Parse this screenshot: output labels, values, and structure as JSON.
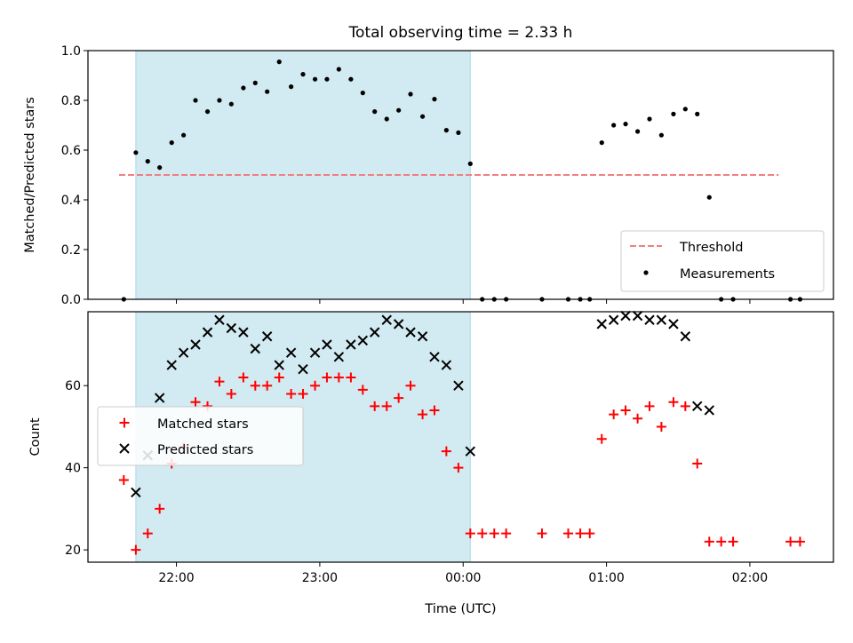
{
  "chart_data": [
    {
      "type": "scatter",
      "title": "Total observing time = 2.33 h",
      "xlabel": "",
      "ylabel": "Matched/Predicted stars",
      "ylim": [
        0,
        1.0
      ],
      "yticks": [
        0.0,
        0.2,
        0.4,
        0.6,
        0.8,
        1.0
      ],
      "ytick_labels": [
        "0.0",
        "0.2",
        "0.4",
        "0.6",
        "0.8",
        "1.0"
      ],
      "shaded_region": {
        "x_start": 21.717,
        "x_end": 24.05,
        "color": "#add8e6"
      },
      "threshold": {
        "name": "Threshold",
        "value": 0.5,
        "x_start": 21.6,
        "x_end": 26.2,
        "color": "#f08080",
        "style": "dashed"
      },
      "legend": {
        "placement": "lower right",
        "entries": [
          "Threshold",
          "Measurements"
        ]
      },
      "series": [
        {
          "name": "Measurements",
          "marker": "dot",
          "color": "#000000",
          "points": [
            [
              21.633,
              0.0
            ],
            [
              21.717,
              0.59
            ],
            [
              21.8,
              0.555
            ],
            [
              21.883,
              0.53
            ],
            [
              21.967,
              0.63
            ],
            [
              22.05,
              0.66
            ],
            [
              22.133,
              0.8
            ],
            [
              22.217,
              0.755
            ],
            [
              22.3,
              0.8
            ],
            [
              22.383,
              0.785
            ],
            [
              22.467,
              0.85
            ],
            [
              22.55,
              0.87
            ],
            [
              22.633,
              0.835
            ],
            [
              22.717,
              0.955
            ],
            [
              22.8,
              0.855
            ],
            [
              22.883,
              0.905
            ],
            [
              22.967,
              0.885
            ],
            [
              23.05,
              0.885
            ],
            [
              23.133,
              0.925
            ],
            [
              23.217,
              0.885
            ],
            [
              23.3,
              0.83
            ],
            [
              23.383,
              0.755
            ],
            [
              23.467,
              0.725
            ],
            [
              23.55,
              0.76
            ],
            [
              23.633,
              0.825
            ],
            [
              23.717,
              0.735
            ],
            [
              23.8,
              0.805
            ],
            [
              23.883,
              0.68
            ],
            [
              23.967,
              0.67
            ],
            [
              24.05,
              0.545
            ],
            [
              24.133,
              0.0
            ],
            [
              24.217,
              0.0
            ],
            [
              24.3,
              0.0
            ],
            [
              24.55,
              0.0
            ],
            [
              24.733,
              0.0
            ],
            [
              24.817,
              0.0
            ],
            [
              24.883,
              0.0
            ],
            [
              24.967,
              0.63
            ],
            [
              25.05,
              0.7
            ],
            [
              25.133,
              0.705
            ],
            [
              25.217,
              0.675
            ],
            [
              25.3,
              0.725
            ],
            [
              25.383,
              0.66
            ],
            [
              25.467,
              0.745
            ],
            [
              25.55,
              0.765
            ],
            [
              25.633,
              0.745
            ],
            [
              25.717,
              0.41
            ],
            [
              25.8,
              0.0
            ],
            [
              25.883,
              0.0
            ],
            [
              26.283,
              0.0
            ],
            [
              26.35,
              0.0
            ]
          ]
        }
      ]
    },
    {
      "type": "scatter",
      "xlabel": "Time (UTC)",
      "ylabel": "Count",
      "xlim": [
        21.383,
        26.583
      ],
      "ylim": [
        17,
        78
      ],
      "xticks": [
        22,
        23,
        24,
        25,
        26
      ],
      "xtick_labels": [
        "22:00",
        "23:00",
        "00:00",
        "01:00",
        "02:00"
      ],
      "yticks": [
        20,
        40,
        60
      ],
      "ytick_labels": [
        "20",
        "40",
        "60"
      ],
      "shaded_region": {
        "x_start": 21.717,
        "x_end": 24.05,
        "color": "#add8e6"
      },
      "legend": {
        "placement": "center left",
        "entries": [
          "Matched stars",
          "Predicted stars"
        ]
      },
      "series": [
        {
          "name": "Matched stars",
          "marker": "plus",
          "color": "#ff0000",
          "points": [
            [
              21.633,
              37
            ],
            [
              21.717,
              20
            ],
            [
              21.8,
              24
            ],
            [
              21.883,
              30
            ],
            [
              21.967,
              41
            ],
            [
              22.05,
              45
            ],
            [
              22.133,
              56
            ],
            [
              22.217,
              55
            ],
            [
              22.3,
              61
            ],
            [
              22.383,
              58
            ],
            [
              22.467,
              62
            ],
            [
              22.55,
              60
            ],
            [
              22.633,
              60
            ],
            [
              22.717,
              62
            ],
            [
              22.8,
              58
            ],
            [
              22.883,
              58
            ],
            [
              22.967,
              60
            ],
            [
              23.05,
              62
            ],
            [
              23.133,
              62
            ],
            [
              23.217,
              62
            ],
            [
              23.3,
              59
            ],
            [
              23.383,
              55
            ],
            [
              23.467,
              55
            ],
            [
              23.55,
              57
            ],
            [
              23.633,
              60
            ],
            [
              23.717,
              53
            ],
            [
              23.8,
              54
            ],
            [
              23.883,
              44
            ],
            [
              23.967,
              40
            ],
            [
              24.05,
              24
            ],
            [
              24.133,
              24
            ],
            [
              24.217,
              24
            ],
            [
              24.3,
              24
            ],
            [
              24.55,
              24
            ],
            [
              24.733,
              24
            ],
            [
              24.817,
              24
            ],
            [
              24.883,
              24
            ],
            [
              24.967,
              47
            ],
            [
              25.05,
              53
            ],
            [
              25.133,
              54
            ],
            [
              25.217,
              52
            ],
            [
              25.3,
              55
            ],
            [
              25.383,
              50
            ],
            [
              25.467,
              56
            ],
            [
              25.55,
              55
            ],
            [
              25.633,
              41
            ],
            [
              25.717,
              22
            ],
            [
              25.8,
              22
            ],
            [
              25.883,
              22
            ],
            [
              26.283,
              22
            ],
            [
              26.35,
              22
            ]
          ]
        },
        {
          "name": "Predicted stars",
          "marker": "x",
          "color": "#000000",
          "points": [
            [
              21.717,
              34
            ],
            [
              21.8,
              43
            ],
            [
              21.883,
              57
            ],
            [
              21.967,
              65
            ],
            [
              22.05,
              68
            ],
            [
              22.133,
              70
            ],
            [
              22.217,
              73
            ],
            [
              22.3,
              76
            ],
            [
              22.383,
              74
            ],
            [
              22.467,
              73
            ],
            [
              22.55,
              69
            ],
            [
              22.633,
              72
            ],
            [
              22.717,
              65
            ],
            [
              22.8,
              68
            ],
            [
              22.883,
              64
            ],
            [
              22.967,
              68
            ],
            [
              23.05,
              70
            ],
            [
              23.133,
              67
            ],
            [
              23.217,
              70
            ],
            [
              23.3,
              71
            ],
            [
              23.383,
              73
            ],
            [
              23.467,
              76
            ],
            [
              23.55,
              75
            ],
            [
              23.633,
              73
            ],
            [
              23.717,
              72
            ],
            [
              23.8,
              67
            ],
            [
              23.883,
              65
            ],
            [
              23.967,
              60
            ],
            [
              24.05,
              44
            ],
            [
              24.967,
              75
            ],
            [
              25.05,
              76
            ],
            [
              25.133,
              77
            ],
            [
              25.217,
              77
            ],
            [
              25.3,
              76
            ],
            [
              25.383,
              76
            ],
            [
              25.467,
              75
            ],
            [
              25.55,
              72
            ],
            [
              25.633,
              55
            ],
            [
              25.717,
              54
            ]
          ]
        }
      ]
    }
  ]
}
